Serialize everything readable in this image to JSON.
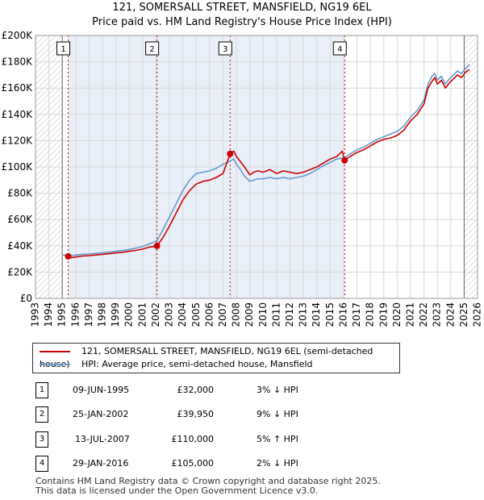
{
  "title_line1": "121, SOMERSALL STREET, MANSFIELD, NG19 6EL",
  "title_line2": "Price paid vs. HM Land Registry's House Price Index (HPI)",
  "colors": {
    "property": "#cc0000",
    "hpi": "#6699cc",
    "shade": "#dce6f5"
  },
  "chart_data": {
    "type": "line",
    "xlim": [
      1993,
      2026
    ],
    "ylim": [
      0,
      200000
    ],
    "x_ticks": [
      "1993",
      "1994",
      "1995",
      "1996",
      "1997",
      "1998",
      "1999",
      "2000",
      "2001",
      "2002",
      "2003",
      "2004",
      "2005",
      "2006",
      "2007",
      "2008",
      "2009",
      "2010",
      "2011",
      "2012",
      "2013",
      "2014",
      "2015",
      "2016",
      "2017",
      "2018",
      "2019",
      "2020",
      "2021",
      "2022",
      "2023",
      "2024",
      "2025",
      "2026"
    ],
    "y_ticks": [
      {
        "value": 0,
        "label": "£0"
      },
      {
        "value": 20000,
        "label": "£20K"
      },
      {
        "value": 40000,
        "label": "£40K"
      },
      {
        "value": 60000,
        "label": "£60K"
      },
      {
        "value": 80000,
        "label": "£80K"
      },
      {
        "value": 100000,
        "label": "£100K"
      },
      {
        "value": 120000,
        "label": "£120K"
      },
      {
        "value": 140000,
        "label": "£140K"
      },
      {
        "value": 160000,
        "label": "£160K"
      },
      {
        "value": 180000,
        "label": "£180K"
      },
      {
        "value": 200000,
        "label": "£200K"
      }
    ],
    "hatch_before": 1995.0,
    "hatch_after": 2025.0,
    "series": [
      {
        "name": "121, SOMERSALL STREET, MANSFIELD, NG19 6EL (semi-detached house)",
        "color": "#cc0000",
        "x": [
          1995.44,
          1995.7,
          1996.0,
          1996.5,
          1997.0,
          1997.5,
          1998.0,
          1998.5,
          1999.0,
          1999.5,
          2000.0,
          2000.5,
          2001.0,
          2001.5,
          2002.07,
          2002.5,
          2003.0,
          2003.5,
          2004.0,
          2004.5,
          2005.0,
          2005.5,
          2006.0,
          2006.5,
          2007.0,
          2007.53,
          2007.8,
          2008.0,
          2008.3,
          2008.6,
          2009.0,
          2009.3,
          2009.6,
          2010.0,
          2010.5,
          2011.0,
          2011.5,
          2012.0,
          2012.5,
          2013.0,
          2013.5,
          2014.0,
          2014.5,
          2015.0,
          2015.5,
          2015.9,
          2016.08,
          2016.5,
          2017.0,
          2017.5,
          2018.0,
          2018.5,
          2019.0,
          2019.5,
          2020.0,
          2020.5,
          2021.0,
          2021.5,
          2022.0,
          2022.3,
          2022.6,
          2022.8,
          2023.0,
          2023.3,
          2023.6,
          2023.9,
          2024.2,
          2024.5,
          2024.8,
          2025.1,
          2025.4
        ],
        "values": [
          32000,
          31000,
          31500,
          32200,
          32500,
          33000,
          33500,
          34000,
          34600,
          35000,
          35800,
          36500,
          37500,
          39000,
          39950,
          46000,
          55000,
          65000,
          75000,
          82000,
          87000,
          89000,
          90000,
          92000,
          95000,
          110000,
          112000,
          108000,
          104000,
          100000,
          94000,
          96000,
          97000,
          96000,
          98000,
          95000,
          97000,
          96000,
          95000,
          96000,
          98000,
          100000,
          103000,
          106000,
          108000,
          112000,
          105000,
          108000,
          111000,
          113000,
          116000,
          119000,
          121000,
          122000,
          124000,
          128000,
          135000,
          140000,
          148000,
          160000,
          165000,
          168000,
          163000,
          166000,
          160000,
          164000,
          167000,
          170000,
          168000,
          172000,
          174000
        ]
      },
      {
        "name": "HPI: Average price, semi-detached house, Mansfield",
        "color": "#6699cc",
        "x": [
          1995.0,
          1995.44,
          1995.7,
          1996.0,
          1996.5,
          1997.0,
          1997.5,
          1998.0,
          1998.5,
          1999.0,
          1999.5,
          2000.0,
          2000.5,
          2001.0,
          2001.5,
          2002.07,
          2002.5,
          2003.0,
          2003.5,
          2004.0,
          2004.5,
          2005.0,
          2005.5,
          2006.0,
          2006.5,
          2007.0,
          2007.53,
          2007.8,
          2008.0,
          2008.3,
          2008.6,
          2009.0,
          2009.3,
          2009.6,
          2010.0,
          2010.5,
          2011.0,
          2011.5,
          2012.0,
          2012.5,
          2013.0,
          2013.5,
          2014.0,
          2014.5,
          2015.0,
          2015.5,
          2016.08,
          2016.5,
          2017.0,
          2017.5,
          2018.0,
          2018.5,
          2019.0,
          2019.5,
          2020.0,
          2020.5,
          2021.0,
          2021.5,
          2022.0,
          2022.3,
          2022.6,
          2022.8,
          2023.0,
          2023.3,
          2023.6,
          2023.9,
          2024.2,
          2024.5,
          2024.8,
          2025.1,
          2025.4
        ],
        "values": [
          33000,
          33000,
          32500,
          33000,
          33500,
          33800,
          34200,
          34700,
          35200,
          35800,
          36400,
          37200,
          38200,
          39500,
          41500,
          44000,
          52000,
          62000,
          72000,
          82000,
          90000,
          95000,
          96000,
          97000,
          99000,
          102000,
          104500,
          106000,
          102000,
          98000,
          93000,
          89000,
          90000,
          91000,
          91000,
          92000,
          91000,
          92000,
          91000,
          92000,
          93000,
          95000,
          98000,
          101000,
          103500,
          106000,
          107000,
          110000,
          113000,
          115000,
          118000,
          121000,
          123000,
          125000,
          127000,
          131000,
          138000,
          143000,
          151000,
          163000,
          169000,
          171000,
          166000,
          169000,
          163000,
          167000,
          170000,
          173000,
          171000,
          175000,
          178000
        ]
      }
    ],
    "sales": [
      {
        "n": "1",
        "x": 1995.44,
        "value": 32000
      },
      {
        "n": "2",
        "x": 2002.07,
        "value": 39950
      },
      {
        "n": "3",
        "x": 2007.53,
        "value": 110000
      },
      {
        "n": "4",
        "x": 2016.08,
        "value": 105000
      }
    ]
  },
  "legend": {
    "property": "121, SOMERSALL STREET, MANSFIELD, NG19 6EL (semi-detached house)",
    "hpi": "HPI: Average price, semi-detached house, Mansfield"
  },
  "transactions": [
    {
      "n": "1",
      "date": "09-JUN-1995",
      "price": "£32,000",
      "hpi": "3% ↓ HPI"
    },
    {
      "n": "2",
      "date": "25-JAN-2002",
      "price": "£39,950",
      "hpi": "9% ↓ HPI"
    },
    {
      "n": "3",
      "date": "13-JUL-2007",
      "price": "£110,000",
      "hpi": "5% ↑ HPI"
    },
    {
      "n": "4",
      "date": "29-JAN-2016",
      "price": "£105,000",
      "hpi": "2% ↓ HPI"
    }
  ],
  "footer_line1": "Contains HM Land Registry data © Crown copyright and database right 2025.",
  "footer_line2": "This data is licensed under the Open Government Licence v3.0."
}
